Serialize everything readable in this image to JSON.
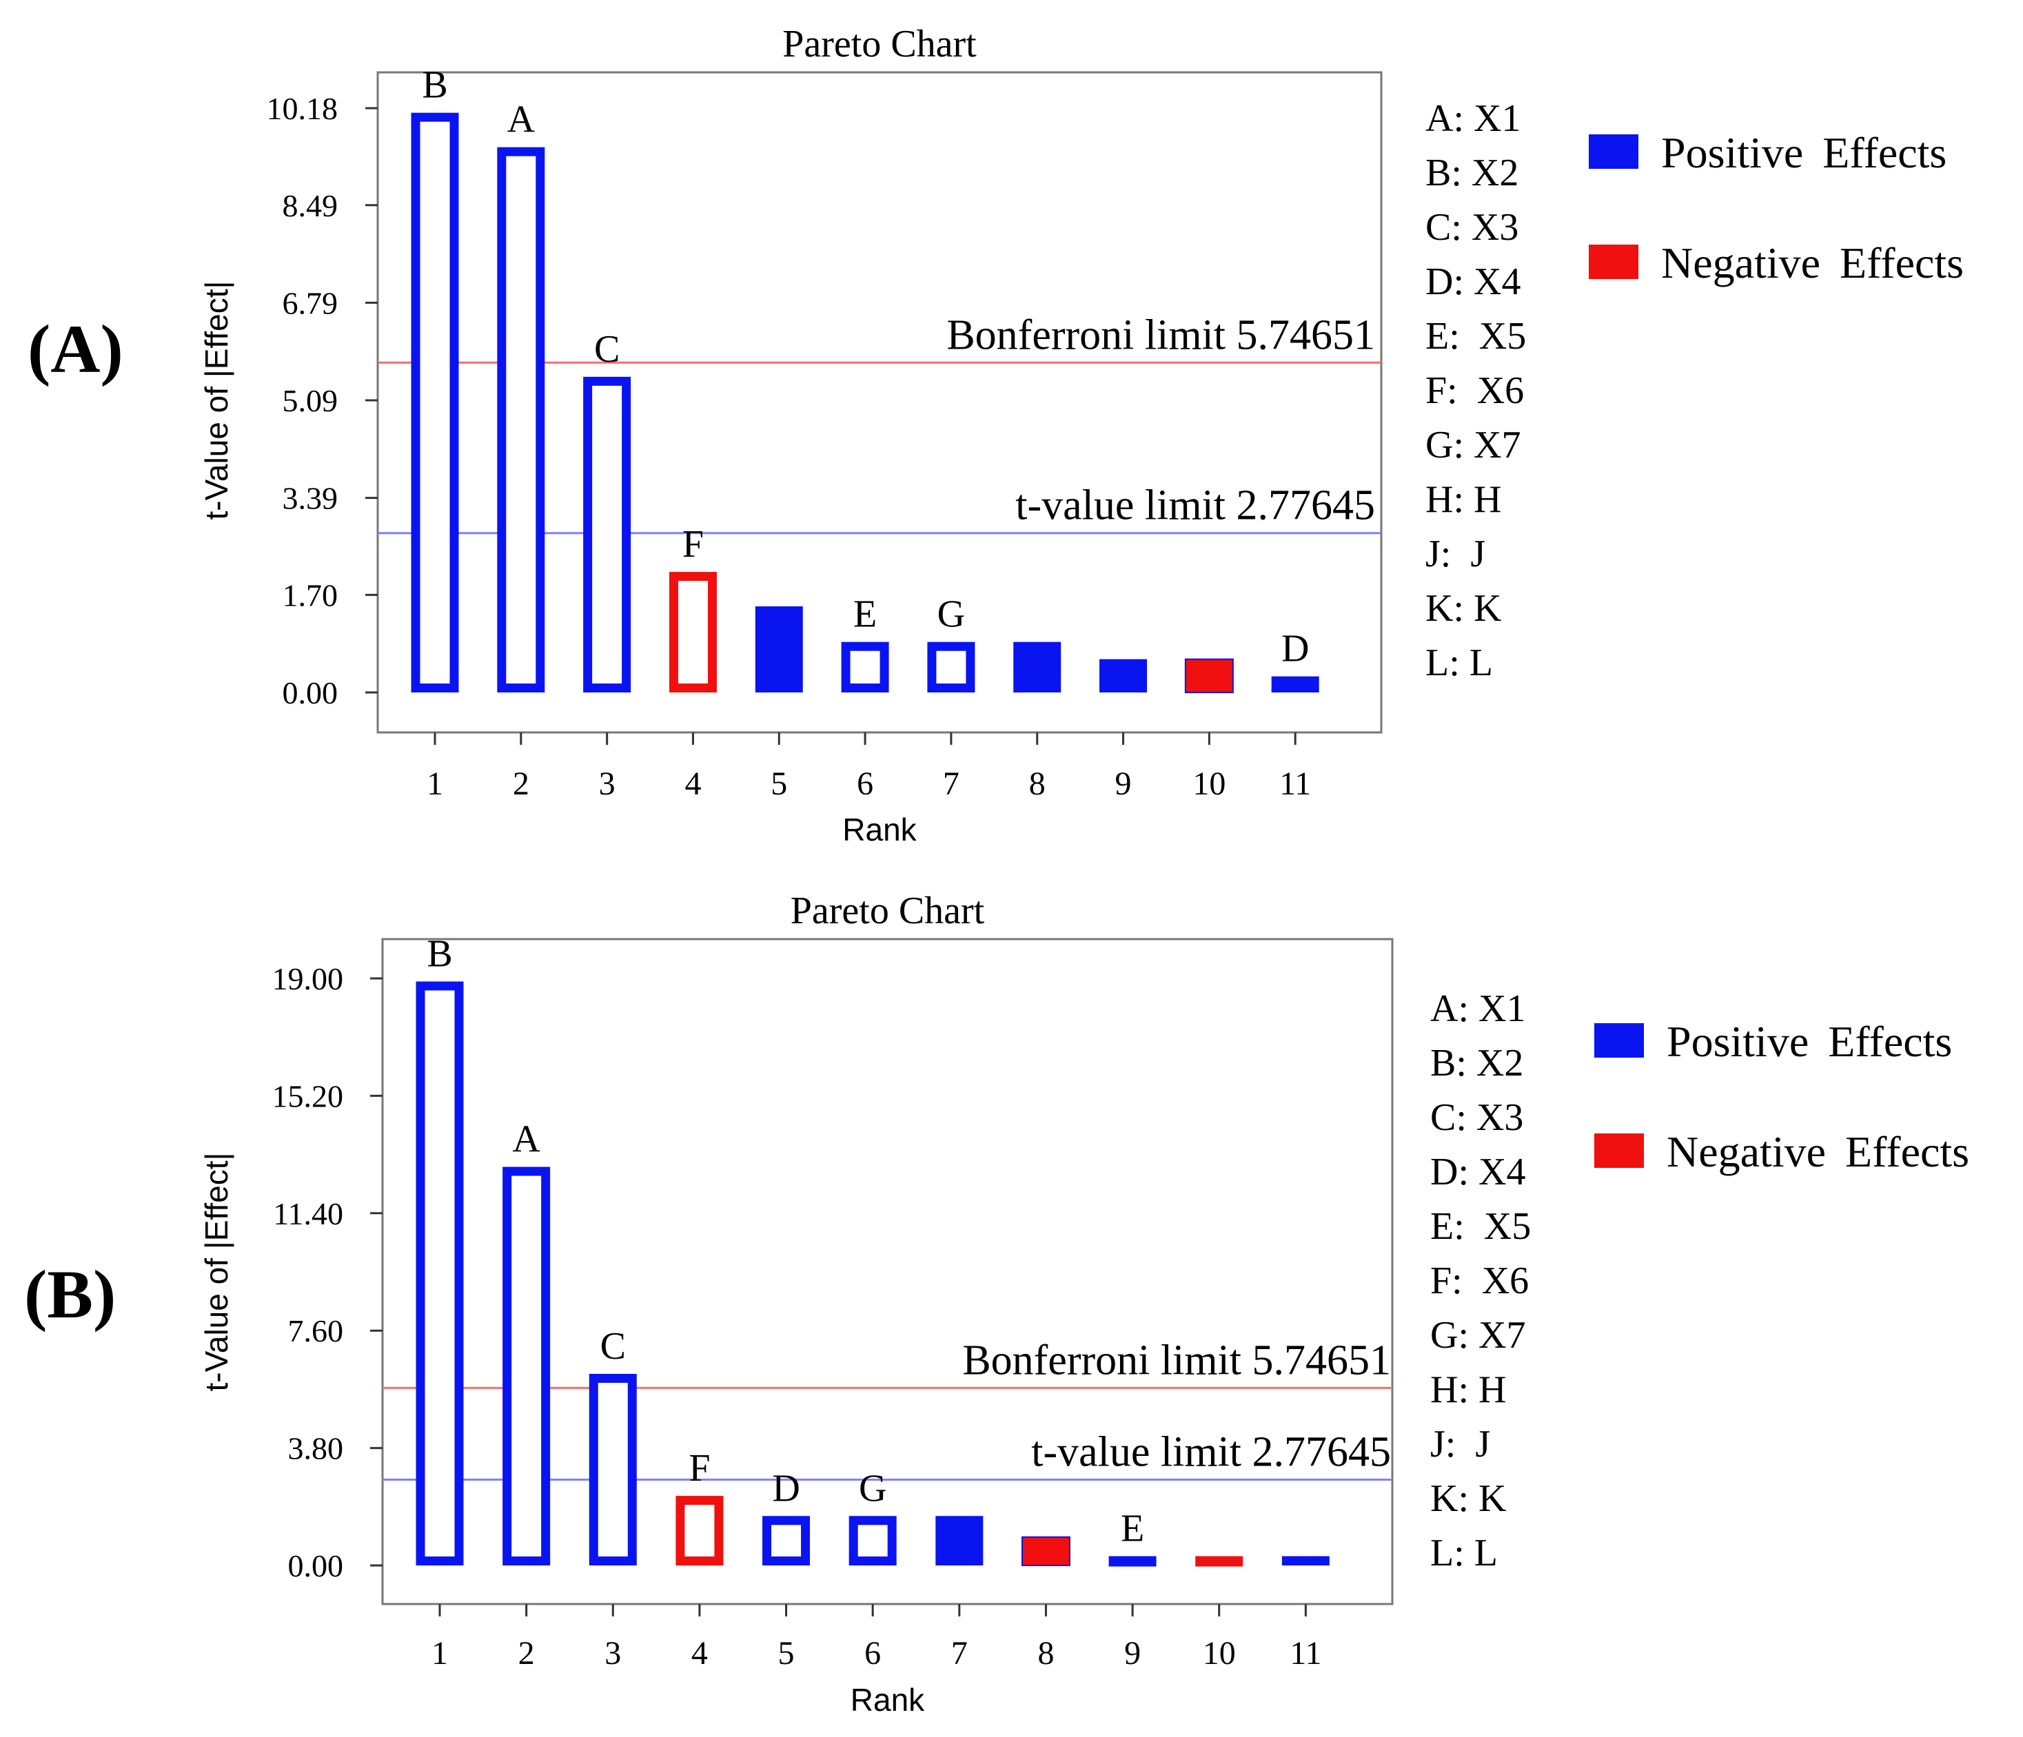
{
  "chart_data": [
    {
      "panel_label": "(A)",
      "type": "bar",
      "title": "Pareto Chart",
      "xlabel": "Rank",
      "ylabel": "t-Value of |Effect|",
      "ylim": [
        0,
        10.18
      ],
      "yticks": [
        "0.00",
        "1.70",
        "3.39",
        "5.09",
        "6.79",
        "8.49",
        "10.18"
      ],
      "yticks_values": [
        0,
        1.7,
        3.39,
        5.09,
        6.79,
        8.49,
        10.18
      ],
      "categories": [
        "1",
        "2",
        "3",
        "4",
        "5",
        "6",
        "7",
        "8",
        "9",
        "10",
        "11"
      ],
      "values": [
        10.1,
        9.5,
        5.5,
        2.1,
        1.5,
        0.88,
        0.88,
        0.88,
        0.58,
        0.58,
        0.28
      ],
      "bar_labels": [
        "B",
        "A",
        "C",
        "F",
        "",
        "E",
        "G",
        "",
        "",
        "",
        "D"
      ],
      "effect_sign": [
        "positive",
        "positive",
        "positive",
        "negative",
        "positive",
        "positive",
        "positive",
        "positive",
        "positive",
        "negative",
        "positive"
      ],
      "bar_style": [
        "outline",
        "outline",
        "outline",
        "outline",
        "filled",
        "outline",
        "outline",
        "filled",
        "filled",
        "filled",
        "outline"
      ],
      "reference_lines": [
        {
          "label": "Bonferroni limit 5.74651",
          "value": 5.74651,
          "color": "#ff6b6b"
        },
        {
          "label": "t-value limit 2.77645",
          "value": 2.77645,
          "color": "#8080ff"
        }
      ],
      "factor_legend": [
        "A: X1",
        "B: X2",
        "C: X3",
        "D: X4",
        "E:  X5",
        "F:  X6",
        "G: X7",
        "H: H",
        "J:  J",
        "K: K",
        "L: L"
      ],
      "effect_legend": [
        {
          "label": "Positive Effects",
          "color": "#0a14f0"
        },
        {
          "label": "Negative Effects",
          "color": "#f01010"
        }
      ]
    },
    {
      "panel_label": "(B)",
      "type": "bar",
      "title": "Pareto Chart",
      "xlabel": "Rank",
      "ylabel": "t-Value of |Effect|",
      "ylim": [
        0,
        19.0
      ],
      "yticks": [
        "0.00",
        "3.80",
        "7.60",
        "11.40",
        "15.20",
        "19.00"
      ],
      "yticks_values": [
        0,
        3.8,
        7.6,
        11.4,
        15.2,
        19.0
      ],
      "categories": [
        "1",
        "2",
        "3",
        "4",
        "5",
        "6",
        "7",
        "8",
        "9",
        "10",
        "11"
      ],
      "values": [
        18.9,
        12.9,
        6.2,
        2.25,
        1.6,
        1.6,
        1.6,
        0.92,
        0.3,
        0.3,
        0.3
      ],
      "bar_labels": [
        "B",
        "A",
        "C",
        "F",
        "D",
        "G",
        "",
        "",
        "E",
        "",
        ""
      ],
      "effect_sign": [
        "positive",
        "positive",
        "positive",
        "negative",
        "positive",
        "positive",
        "positive",
        "negative",
        "positive",
        "negative",
        "positive"
      ],
      "bar_style": [
        "outline",
        "outline",
        "outline",
        "outline",
        "outline",
        "outline",
        "filled",
        "filled",
        "outline",
        "outline",
        "filled"
      ],
      "reference_lines": [
        {
          "label": "Bonferroni limit 5.74651",
          "value": 5.74651,
          "color": "#ff6b6b"
        },
        {
          "label": "t-value limit 2.77645",
          "value": 2.77645,
          "color": "#8080ff"
        }
      ],
      "factor_legend": [
        "A: X1",
        "B: X2",
        "C: X3",
        "D: X4",
        "E:  X5",
        "F:  X6",
        "G: X7",
        "H: H",
        "J:  J",
        "K: K",
        "L: L"
      ],
      "effect_legend": [
        {
          "label": "Positive Effects",
          "color": "#0a14f0"
        },
        {
          "label": "Negative Effects",
          "color": "#f01010"
        }
      ]
    }
  ]
}
